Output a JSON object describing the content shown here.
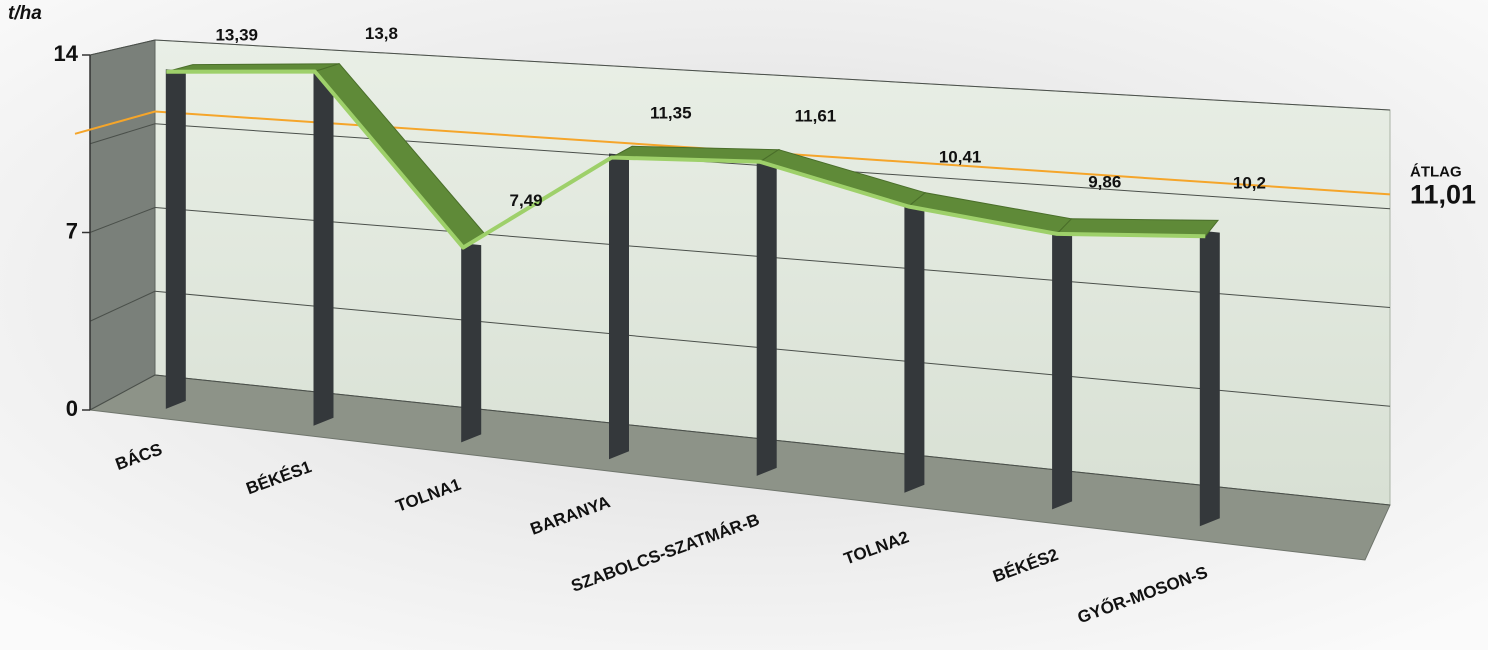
{
  "chart_data": {
    "type": "line3d",
    "y_label": "t/ha",
    "categories": [
      "BÁCS",
      "BÉKÉS1",
      "TOLNA1",
      "BARANYA",
      "SZABOLCS-SZATMÁR-B",
      "TOLNA2",
      "BÉKÉS2",
      "GYŐR-MOSON-S"
    ],
    "values": [
      13.39,
      13.8,
      7.49,
      11.35,
      11.61,
      10.41,
      9.86,
      10.2
    ],
    "value_labels": [
      "13,39",
      "13,8",
      "7,49",
      "11,35",
      "11,61",
      "10,41",
      "9,86",
      "10,2"
    ],
    "color": "#5f8a38",
    "ylim": [
      0,
      14
    ],
    "yticks": [
      0,
      7,
      14
    ],
    "minor_yticks": [
      3.5,
      10.5
    ],
    "grid": true,
    "average": {
      "label": "ÁTLAG",
      "value": 11.01,
      "value_label": "11,01",
      "color": "#f5a52a"
    }
  }
}
